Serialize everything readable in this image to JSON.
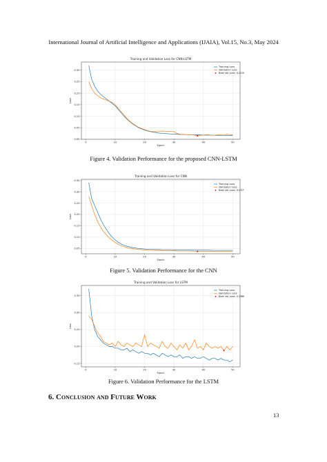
{
  "header": "International Journal of Artificial Intelligence and Applications (IJAIA), Vol.15, No.3, May 2024",
  "captions": [
    "Figure 4.  Validation Performance for the proposed CNN-LSTM",
    "Figure 5.  Validation Performance for the CNN",
    "Figure 6.  Validation Performance for the LSTM"
  ],
  "section_heading": "6. Conclusion and Future Work",
  "page_number": "13",
  "chart_data": [
    {
      "type": "line",
      "title": "Training and Validation Loss for CNN-LSTM",
      "x_label": "Epoch",
      "y_label": "Loss",
      "x": [
        1,
        2,
        3,
        4,
        5,
        6,
        7,
        8,
        9,
        10,
        11,
        12,
        13,
        14,
        15,
        16,
        17,
        18,
        19,
        20,
        21,
        22,
        23,
        24,
        25,
        26,
        27,
        28,
        29,
        30,
        31,
        32,
        33,
        34,
        35,
        36,
        37,
        38,
        39,
        40,
        41,
        42,
        43,
        44,
        45,
        46,
        47,
        48,
        49,
        50
      ],
      "series": [
        {
          "name": "Training Loss",
          "color": "#1f77b4",
          "values": [
            0.32,
            0.26,
            0.23,
            0.21,
            0.195,
            0.185,
            0.175,
            0.165,
            0.155,
            0.145,
            0.13,
            0.115,
            0.1,
            0.088,
            0.076,
            0.066,
            0.058,
            0.05,
            0.045,
            0.04,
            0.036,
            0.033,
            0.031,
            0.029,
            0.027,
            0.026,
            0.025,
            0.024,
            0.023,
            0.022,
            0.022,
            0.021,
            0.021,
            0.02,
            0.02,
            0.02,
            0.019,
            0.019,
            0.019,
            0.018,
            0.018,
            0.018,
            0.018,
            0.017,
            0.017,
            0.017,
            0.017,
            0.017,
            0.016,
            0.016
          ]
        },
        {
          "name": "Validation Loss",
          "color": "#ff7f0e",
          "values": [
            0.25,
            0.22,
            0.2,
            0.19,
            0.18,
            0.175,
            0.17,
            0.165,
            0.16,
            0.15,
            0.135,
            0.12,
            0.105,
            0.09,
            0.078,
            0.068,
            0.06,
            0.052,
            0.047,
            0.042,
            0.038,
            0.035,
            0.033,
            0.033,
            0.035,
            0.036,
            0.035,
            0.034,
            0.035,
            0.033,
            0.025,
            0.022,
            0.02,
            0.021,
            0.019,
            0.02,
            0.018,
            0.015,
            0.017,
            0.018,
            0.02,
            0.019,
            0.017,
            0.018,
            0.02,
            0.019,
            0.018,
            0.022,
            0.02,
            0.019
          ]
        }
      ],
      "best": {
        "x": 38,
        "value": 0.015,
        "label": "Best Val Loss: 0.0150",
        "color": "#d62728"
      },
      "xlim": [
        -1.5,
        52.5
      ],
      "xticks": [
        0,
        10,
        20,
        30,
        40,
        50
      ],
      "ylim": [
        0,
        0.335
      ],
      "yticks": [
        {
          "value": 0,
          "label": "0.00"
        },
        {
          "value": 0.05,
          "label": "0.05"
        },
        {
          "value": 0.1,
          "label": "0.10"
        },
        {
          "value": 0.15,
          "label": "0.15"
        },
        {
          "value": 0.2,
          "label": "0.20"
        },
        {
          "value": 0.25,
          "label": "0.25"
        },
        {
          "value": 0.3,
          "label": "0.30"
        }
      ],
      "grid": true,
      "legend": "upper-right"
    },
    {
      "type": "line",
      "title": "Training and Validation Loss for CNN",
      "x_label": "Epoch",
      "y_label": "Loss",
      "x": [
        1,
        2,
        3,
        4,
        5,
        6,
        7,
        8,
        9,
        10,
        11,
        12,
        13,
        14,
        15,
        16,
        17,
        18,
        19,
        20,
        21,
        22,
        23,
        24,
        25,
        26,
        27,
        28,
        29,
        30,
        31,
        32,
        33,
        34,
        35,
        36,
        37,
        38,
        39,
        40,
        41,
        42,
        43,
        44,
        45,
        46,
        47,
        48,
        49,
        50
      ],
      "series": [
        {
          "name": "Training Loss",
          "color": "#1f77b4",
          "values": [
            0.34,
            0.27,
            0.24,
            0.21,
            0.18,
            0.155,
            0.135,
            0.115,
            0.1,
            0.088,
            0.078,
            0.07,
            0.064,
            0.06,
            0.057,
            0.054,
            0.052,
            0.05,
            0.049,
            0.048,
            0.047,
            0.047,
            0.046,
            0.046,
            0.046,
            0.045,
            0.045,
            0.045,
            0.045,
            0.044,
            0.044,
            0.044,
            0.044,
            0.044,
            0.044,
            0.043,
            0.043,
            0.043,
            0.043,
            0.043,
            0.043,
            0.043,
            0.042,
            0.042,
            0.042,
            0.042,
            0.042,
            0.042,
            0.042,
            0.042
          ]
        },
        {
          "name": "Validation Loss",
          "color": "#ff7f0e",
          "values": [
            0.28,
            0.24,
            0.2,
            0.17,
            0.145,
            0.125,
            0.11,
            0.097,
            0.086,
            0.077,
            0.069,
            0.063,
            0.058,
            0.054,
            0.051,
            0.049,
            0.047,
            0.046,
            0.045,
            0.044,
            0.043,
            0.042,
            0.042,
            0.041,
            0.041,
            0.041,
            0.04,
            0.04,
            0.04,
            0.04,
            0.039,
            0.039,
            0.039,
            0.039,
            0.039,
            0.039,
            0.038,
            0.0373,
            0.038,
            0.038,
            0.038,
            0.038,
            0.038,
            0.038,
            0.038,
            0.038,
            0.038,
            0.038,
            0.038,
            0.038
          ]
        }
      ],
      "best": {
        "x": 38,
        "value": 0.0373,
        "label": "Best Val Loss: 0.0373",
        "color": "#d62728"
      },
      "xlim": [
        -1.5,
        52.5
      ],
      "xticks": [
        0,
        10,
        20,
        30,
        40,
        50
      ],
      "ylim": [
        0.027,
        0.355
      ],
      "yticks": [
        {
          "value": 0.05,
          "label": "0.05"
        },
        {
          "value": 0.1,
          "label": "0.10"
        },
        {
          "value": 0.15,
          "label": "0.15"
        },
        {
          "value": 0.2,
          "label": "0.20"
        },
        {
          "value": 0.25,
          "label": "0.25"
        },
        {
          "value": 0.3,
          "label": "0.30"
        },
        {
          "value": 0.35,
          "label": "0.35"
        }
      ],
      "grid": true,
      "legend": "upper-right"
    },
    {
      "type": "line",
      "title": "Training and Validation Loss for LSTM",
      "x_label": "Epoch",
      "y_label": "Loss",
      "x": [
        1,
        2,
        3,
        4,
        5,
        6,
        7,
        8,
        9,
        10,
        11,
        12,
        13,
        14,
        15,
        16,
        17,
        18,
        19,
        20,
        21,
        22,
        23,
        24,
        25,
        26,
        27,
        28,
        29,
        30,
        31,
        32,
        33,
        34,
        35,
        36,
        37,
        38,
        39,
        40,
        41,
        42,
        43,
        44,
        45,
        46,
        47,
        48,
        49,
        50
      ],
      "series": [
        {
          "name": "Training Loss",
          "color": "#1f77b4",
          "values": [
            0.37,
            0.29,
            0.25,
            0.23,
            0.22,
            0.21,
            0.205,
            0.2,
            0.2,
            0.195,
            0.195,
            0.19,
            0.19,
            0.195,
            0.185,
            0.19,
            0.185,
            0.18,
            0.185,
            0.18,
            0.18,
            0.175,
            0.18,
            0.175,
            0.17,
            0.18,
            0.175,
            0.17,
            0.175,
            0.17,
            0.17,
            0.175,
            0.165,
            0.17,
            0.17,
            0.165,
            0.17,
            0.165,
            0.165,
            0.17,
            0.165,
            0.16,
            0.165,
            0.165,
            0.16,
            0.165,
            0.16,
            0.16,
            0.155,
            0.16
          ]
        },
        {
          "name": "Validation Loss",
          "color": "#ff7f0e",
          "values": [
            0.29,
            0.28,
            0.26,
            0.24,
            0.23,
            0.215,
            0.21,
            0.205,
            0.21,
            0.2,
            0.215,
            0.205,
            0.2,
            0.21,
            0.205,
            0.2,
            0.21,
            0.205,
            0.2,
            0.235,
            0.2,
            0.21,
            0.205,
            0.2,
            0.195,
            0.215,
            0.2,
            0.195,
            0.21,
            0.2,
            0.19,
            0.205,
            0.195,
            0.21,
            0.19,
            0.2,
            0.22,
            0.195,
            0.2,
            0.19,
            0.21,
            0.2,
            0.195,
            0.2,
            0.195,
            0.2,
            0.188,
            0.2,
            0.19,
            0.2
          ]
        }
      ],
      "best": {
        "x": 47,
        "value": 0.188,
        "label": "Best Val Loss: 0.1880",
        "color": "#d62728"
      },
      "xlim": [
        -1.5,
        52.5
      ],
      "xticks": [
        0,
        10,
        20,
        30,
        40,
        50
      ],
      "ylim": [
        0.14,
        0.38
      ],
      "yticks": [
        {
          "value": 0.15,
          "label": "0.15"
        },
        {
          "value": 0.2,
          "label": "0.20"
        },
        {
          "value": 0.25,
          "label": "0.25"
        },
        {
          "value": 0.3,
          "label": "0.30"
        },
        {
          "value": 0.35,
          "label": "0.35"
        }
      ],
      "grid": true,
      "legend": "upper-right"
    }
  ]
}
